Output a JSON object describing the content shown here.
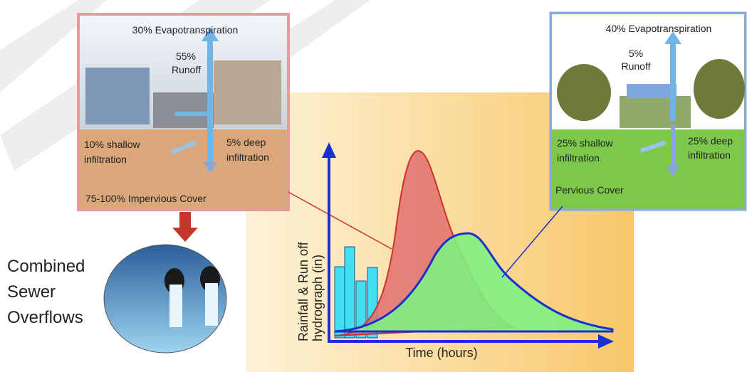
{
  "impervious": {
    "evapotranspiration": "30% Evapotranspiration",
    "runoff": [
      "55%",
      "Runoff"
    ],
    "shallow_infiltration": [
      "10% shallow",
      "infiltration"
    ],
    "deep_infiltration": [
      "5% deep",
      "infiltration"
    ],
    "cover": "75-100% Impervious Cover"
  },
  "pervious": {
    "evapotranspiration": "40% Evapotranspiration",
    "runoff": [
      "5%",
      "Runoff"
    ],
    "shallow_infiltration": [
      "25% shallow",
      "infiltration"
    ],
    "deep_infiltration": [
      "25% deep",
      "infiltration"
    ],
    "cover": "Pervious Cover"
  },
  "overflow": {
    "label": [
      "Combined",
      "Sewer",
      "Overflows"
    ]
  },
  "hydrograph": {
    "y_axis_label": [
      "Rainfall & Run off",
      "hydrograph (in)"
    ],
    "x_axis_label": "Time (hours)"
  }
}
